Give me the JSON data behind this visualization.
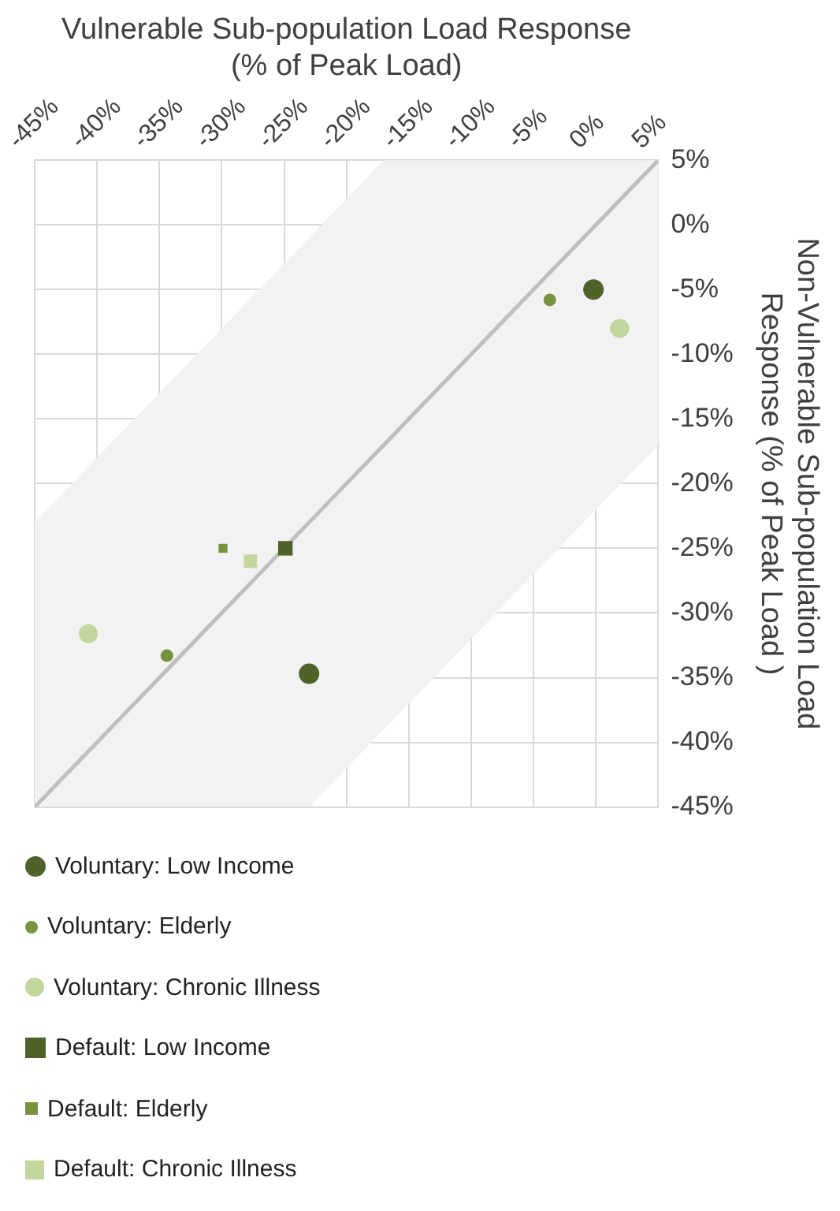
{
  "chart_data": {
    "type": "scatter",
    "xlabel": "Vulnerable Sub-population Load Response\n(% of Peak Load)",
    "ylabel": "Non-Vulnerable Sub-population Load\nResponse (% of Peak Load )",
    "xlim": [
      -45,
      5
    ],
    "ylim": [
      -45,
      5
    ],
    "xticks": [
      {
        "value": -45,
        "label": "-45%"
      },
      {
        "value": -40,
        "label": "-40%"
      },
      {
        "value": -35,
        "label": "-35%"
      },
      {
        "value": -30,
        "label": "-30%"
      },
      {
        "value": -25,
        "label": "-25%"
      },
      {
        "value": -20,
        "label": "-20%"
      },
      {
        "value": -15,
        "label": "-15%"
      },
      {
        "value": -10,
        "label": "-10%"
      },
      {
        "value": -5,
        "label": "-5%"
      },
      {
        "value": 0,
        "label": "0%"
      },
      {
        "value": 5,
        "label": "5%"
      }
    ],
    "yticks": [
      {
        "value": -45,
        "label": "-45%"
      },
      {
        "value": -40,
        "label": "-40%"
      },
      {
        "value": -35,
        "label": "-35%"
      },
      {
        "value": -30,
        "label": "-30%"
      },
      {
        "value": -25,
        "label": "-25%"
      },
      {
        "value": -20,
        "label": "-20%"
      },
      {
        "value": -15,
        "label": "-15%"
      },
      {
        "value": -10,
        "label": "-10%"
      },
      {
        "value": -5,
        "label": "-5%"
      },
      {
        "value": 0,
        "label": "0%"
      },
      {
        "value": 5,
        "label": "5%"
      }
    ],
    "grid": true,
    "legend": "bottom",
    "series": [
      {
        "type": "line",
        "color": "#bfbfbf",
        "marker": "none",
        "x": [
          -45,
          -23,
          -17,
          5
        ],
        "values": [
          -45,
          -23,
          -17,
          5
        ],
        "lower": [
          -45,
          -45,
          -39,
          -17
        ],
        "upper": [
          -23,
          -1,
          5,
          5
        ]
      },
      {
        "name": "Voluntary: Low Income",
        "color": "#4f6228",
        "marker": "circle",
        "x": [
          -0.2,
          -23
        ],
        "values": [
          -5,
          -34.7
        ]
      },
      {
        "name": "Voluntary: Elderly",
        "color": "#77933c",
        "marker": "circle",
        "x": [
          -3.7,
          -34.4
        ],
        "values": [
          -5.8,
          -33.3
        ]
      },
      {
        "name": "Voluntary: Chronic Illness",
        "color": "#c3d69b",
        "marker": "circle",
        "x": [
          1.9,
          -40.7
        ],
        "values": [
          -8,
          -31.6
        ]
      },
      {
        "name": "Default: Low Income",
        "color": "#4f6228",
        "marker": "square",
        "x": [
          -24.9
        ],
        "values": [
          -25
        ]
      },
      {
        "name": "Default: Elderly",
        "color": "#77933c",
        "marker": "square",
        "x": [
          -29.9
        ],
        "values": [
          -25
        ]
      },
      {
        "name": "Default: Chronic Illness",
        "color": "#c3d69b",
        "marker": "square",
        "x": [
          -27.7
        ],
        "values": [
          -26
        ]
      }
    ]
  }
}
